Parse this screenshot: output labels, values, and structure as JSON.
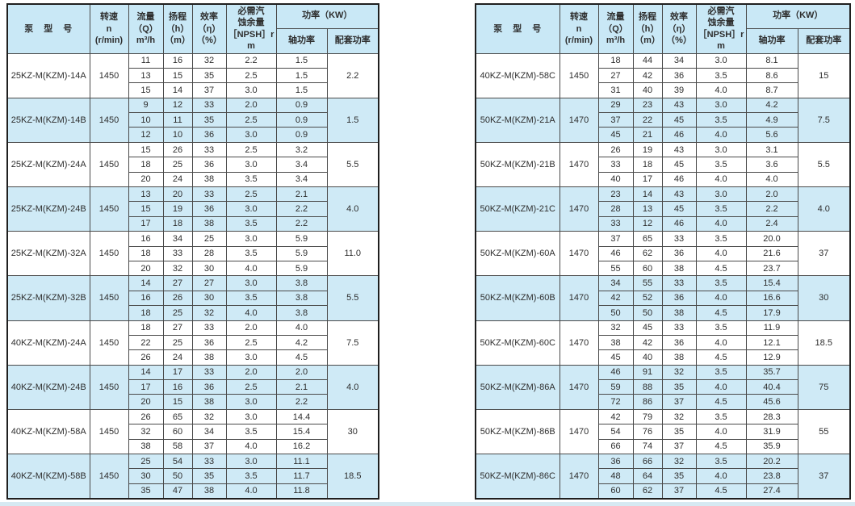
{
  "header": {
    "model": "泵　型　号",
    "speed": [
      "转速",
      "n",
      "(r/min)"
    ],
    "flow": [
      "流量",
      "（Q）",
      "m³/h"
    ],
    "head": [
      "扬程",
      "（h）",
      "（m）"
    ],
    "eff": [
      "效率",
      "（η）",
      "（%）"
    ],
    "npsh": [
      "必需汽",
      "蚀余量",
      "［NPSH］r",
      "m"
    ],
    "power": "功率（KW）",
    "shaft": "轴功率",
    "matched": "配套功率"
  },
  "colors": {
    "row_alt": "#cfeaf6",
    "header_bg": "#c9e8f6",
    "border": "#4a4a4a",
    "text": "#2e2e2e",
    "bottom_strip": "#d7e9f2"
  },
  "tables": [
    {
      "groups": [
        {
          "model": "25KZ-M(KZM)-14A",
          "speed": "1450",
          "matched": "2.2",
          "rows": [
            [
              "11",
              "16",
              "32",
              "2.2",
              "1.5"
            ],
            [
              "13",
              "15",
              "35",
              "2.5",
              "1.5"
            ],
            [
              "15",
              "14",
              "37",
              "3.0",
              "1.5"
            ]
          ]
        },
        {
          "model": "25KZ-M(KZM)-14B",
          "speed": "1450",
          "matched": "1.5",
          "rows": [
            [
              "9",
              "12",
              "33",
              "2.0",
              "0.9"
            ],
            [
              "10",
              "11",
              "35",
              "2.5",
              "0.9"
            ],
            [
              "12",
              "10",
              "36",
              "3.0",
              "0.9"
            ]
          ]
        },
        {
          "model": "25KZ-M(KZM)-24A",
          "speed": "1450",
          "matched": "5.5",
          "rows": [
            [
              "15",
              "26",
              "33",
              "2.5",
              "3.2"
            ],
            [
              "18",
              "25",
              "36",
              "3.0",
              "3.4"
            ],
            [
              "20",
              "24",
              "38",
              "3.5",
              "3.4"
            ]
          ]
        },
        {
          "model": "25KZ-M(KZM)-24B",
          "speed": "1450",
          "matched": "4.0",
          "rows": [
            [
              "13",
              "20",
              "33",
              "2.5",
              "2.1"
            ],
            [
              "15",
              "19",
              "36",
              "3.0",
              "2.2"
            ],
            [
              "17",
              "18",
              "38",
              "3.5",
              "2.2"
            ]
          ]
        },
        {
          "model": "25KZ-M(KZM)-32A",
          "speed": "1450",
          "matched": "11.0",
          "rows": [
            [
              "16",
              "34",
              "25",
              "3.0",
              "5.9"
            ],
            [
              "18",
              "33",
              "28",
              "3.5",
              "5.9"
            ],
            [
              "20",
              "32",
              "30",
              "4.0",
              "5.9"
            ]
          ]
        },
        {
          "model": "25KZ-M(KZM)-32B",
          "speed": "1450",
          "matched": "5.5",
          "rows": [
            [
              "14",
              "27",
              "27",
              "3.0",
              "3.8"
            ],
            [
              "16",
              "26",
              "30",
              "3.5",
              "3.8"
            ],
            [
              "18",
              "25",
              "32",
              "4.0",
              "3.8"
            ]
          ]
        },
        {
          "model": "40KZ-M(KZM)-24A",
          "speed": "1450",
          "matched": "7.5",
          "rows": [
            [
              "18",
              "27",
              "33",
              "2.0",
              "4.0"
            ],
            [
              "22",
              "25",
              "36",
              "2.5",
              "4.2"
            ],
            [
              "26",
              "24",
              "38",
              "3.0",
              "4.5"
            ]
          ]
        },
        {
          "model": "40KZ-M(KZM)-24B",
          "speed": "1450",
          "matched": "4.0",
          "rows": [
            [
              "14",
              "17",
              "33",
              "2.0",
              "2.0"
            ],
            [
              "17",
              "16",
              "36",
              "2.5",
              "2.1"
            ],
            [
              "20",
              "15",
              "38",
              "3.0",
              "2.2"
            ]
          ]
        },
        {
          "model": "40KZ-M(KZM)-58A",
          "speed": "1450",
          "matched": "30",
          "rows": [
            [
              "26",
              "65",
              "32",
              "3.0",
              "14.4"
            ],
            [
              "32",
              "60",
              "34",
              "3.5",
              "15.4"
            ],
            [
              "38",
              "58",
              "37",
              "4.0",
              "16.2"
            ]
          ]
        },
        {
          "model": "40KZ-M(KZM)-58B",
          "speed": "1450",
          "matched": "18.5",
          "rows": [
            [
              "25",
              "54",
              "33",
              "3.0",
              "11.1"
            ],
            [
              "30",
              "50",
              "35",
              "3.5",
              "11.7"
            ],
            [
              "35",
              "47",
              "38",
              "4.0",
              "11.8"
            ]
          ]
        }
      ]
    },
    {
      "groups": [
        {
          "model": "40KZ-M(KZM)-58C",
          "speed": "1450",
          "matched": "15",
          "rows": [
            [
              "18",
              "44",
              "34",
              "3.0",
              "8.1"
            ],
            [
              "27",
              "42",
              "36",
              "3.5",
              "8.6"
            ],
            [
              "31",
              "40",
              "39",
              "4.0",
              "8.7"
            ]
          ]
        },
        {
          "model": "50KZ-M(KZM)-21A",
          "speed": "1470",
          "matched": "7.5",
          "rows": [
            [
              "29",
              "23",
              "43",
              "3.0",
              "4.2"
            ],
            [
              "37",
              "22",
              "45",
              "3.5",
              "4.9"
            ],
            [
              "45",
              "21",
              "46",
              "4.0",
              "5.6"
            ]
          ]
        },
        {
          "model": "50KZ-M(KZM)-21B",
          "speed": "1470",
          "matched": "5.5",
          "rows": [
            [
              "26",
              "19",
              "43",
              "3.0",
              "3.1"
            ],
            [
              "33",
              "18",
              "45",
              "3.5",
              "3.6"
            ],
            [
              "40",
              "17",
              "46",
              "4.0",
              "4.0"
            ]
          ]
        },
        {
          "model": "50KZ-M(KZM)-21C",
          "speed": "1470",
          "matched": "4.0",
          "rows": [
            [
              "23",
              "14",
              "43",
              "3.0",
              "2.0"
            ],
            [
              "28",
              "13",
              "45",
              "3.5",
              "2.2"
            ],
            [
              "33",
              "12",
              "46",
              "4.0",
              "2.4"
            ]
          ]
        },
        {
          "model": "50KZ-M(KZM)-60A",
          "speed": "1470",
          "matched": "37",
          "rows": [
            [
              "37",
              "65",
              "33",
              "3.5",
              "20.0"
            ],
            [
              "46",
              "62",
              "36",
              "4.0",
              "21.6"
            ],
            [
              "55",
              "60",
              "38",
              "4.5",
              "23.7"
            ]
          ]
        },
        {
          "model": "50KZ-M(KZM)-60B",
          "speed": "1470",
          "matched": "30",
          "rows": [
            [
              "34",
              "55",
              "33",
              "3.5",
              "15.4"
            ],
            [
              "42",
              "52",
              "36",
              "4.0",
              "16.6"
            ],
            [
              "50",
              "50",
              "38",
              "4.5",
              "17.9"
            ]
          ]
        },
        {
          "model": "50KZ-M(KZM)-60C",
          "speed": "1470",
          "matched": "18.5",
          "rows": [
            [
              "32",
              "45",
              "33",
              "3.5",
              "11.9"
            ],
            [
              "38",
              "42",
              "36",
              "4.0",
              "12.1"
            ],
            [
              "45",
              "40",
              "38",
              "4.5",
              "12.9"
            ]
          ]
        },
        {
          "model": "50KZ-M(KZM)-86A",
          "speed": "1470",
          "matched": "75",
          "rows": [
            [
              "46",
              "91",
              "32",
              "3.5",
              "35.7"
            ],
            [
              "59",
              "88",
              "35",
              "4.0",
              "40.4"
            ],
            [
              "72",
              "86",
              "37",
              "4.5",
              "45.6"
            ]
          ]
        },
        {
          "model": "50KZ-M(KZM)-86B",
          "speed": "1470",
          "matched": "55",
          "rows": [
            [
              "42",
              "79",
              "32",
              "3.5",
              "28.3"
            ],
            [
              "54",
              "76",
              "35",
              "4.0",
              "31.9"
            ],
            [
              "66",
              "74",
              "37",
              "4.5",
              "35.9"
            ]
          ]
        },
        {
          "model": "50KZ-M(KZM)-86C",
          "speed": "1470",
          "matched": "37",
          "rows": [
            [
              "36",
              "66",
              "32",
              "3.5",
              "20.2"
            ],
            [
              "48",
              "64",
              "35",
              "4.0",
              "23.8"
            ],
            [
              "60",
              "62",
              "37",
              "4.5",
              "27.4"
            ]
          ]
        }
      ]
    }
  ]
}
